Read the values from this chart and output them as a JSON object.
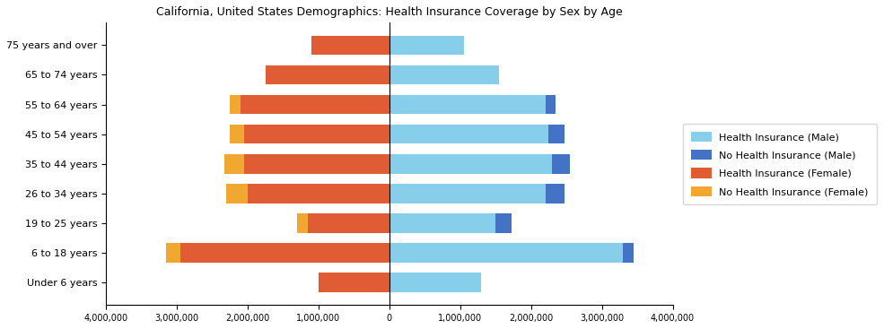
{
  "title": "California, United States Demographics: Health Insurance Coverage by Sex by Age",
  "age_groups": [
    "Under 6 years",
    "6 to 18 years",
    "19 to 25 years",
    "26 to 34 years",
    "35 to 44 years",
    "45 to 54 years",
    "55 to 64 years",
    "65 to 74 years",
    "75 years and over"
  ],
  "male_health_ins": [
    1300000,
    3300000,
    1500000,
    2200000,
    2300000,
    2250000,
    2200000,
    1550000,
    1050000
  ],
  "male_no_health_ins": [
    0,
    150000,
    230000,
    270000,
    250000,
    220000,
    150000,
    0,
    0
  ],
  "female_health_ins": [
    1000000,
    2950000,
    1150000,
    2000000,
    2050000,
    2050000,
    2100000,
    1750000,
    1100000
  ],
  "female_no_health_ins": [
    0,
    200000,
    150000,
    300000,
    280000,
    200000,
    150000,
    0,
    0
  ],
  "color_male_health": "#87CEEB",
  "color_male_no_health": "#4472C4",
  "color_female_health": "#E05C35",
  "color_female_no_health": "#F0A830",
  "xlim": 4000000,
  "legend_labels": [
    "Health Insurance (Male)",
    "No Health Insurance (Male)",
    "Health Insurance (Female)",
    "No Health Insurance (Female)"
  ]
}
